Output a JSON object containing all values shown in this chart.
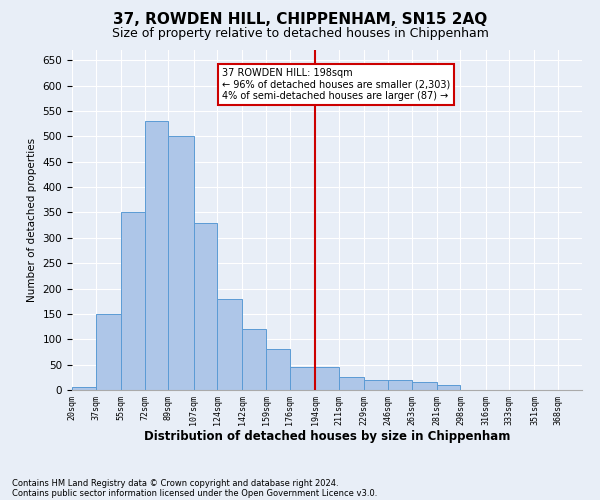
{
  "title": "37, ROWDEN HILL, CHIPPENHAM, SN15 2AQ",
  "subtitle": "Size of property relative to detached houses in Chippenham",
  "xlabel": "Distribution of detached houses by size in Chippenham",
  "ylabel": "Number of detached properties",
  "footnote1": "Contains HM Land Registry data © Crown copyright and database right 2024.",
  "footnote2": "Contains public sector information licensed under the Open Government Licence v3.0.",
  "annotation_title": "37 ROWDEN HILL: 198sqm",
  "annotation_line1": "← 96% of detached houses are smaller (2,303)",
  "annotation_line2": "4% of semi-detached houses are larger (87) →",
  "property_size": 198,
  "bin_labels": [
    "20sqm",
    "37sqm",
    "55sqm",
    "72sqm",
    "89sqm",
    "107sqm",
    "124sqm",
    "142sqm",
    "159sqm",
    "176sqm",
    "194sqm",
    "211sqm",
    "229sqm",
    "246sqm",
    "263sqm",
    "281sqm",
    "298sqm",
    "316sqm",
    "333sqm",
    "351sqm",
    "368sqm"
  ],
  "bin_edges": [
    20,
    37,
    55,
    72,
    89,
    107,
    124,
    142,
    159,
    176,
    194,
    211,
    229,
    246,
    263,
    281,
    298,
    316,
    333,
    351,
    368,
    385
  ],
  "bar_heights": [
    5,
    150,
    350,
    530,
    500,
    330,
    180,
    120,
    80,
    45,
    45,
    25,
    20,
    20,
    15,
    10,
    0,
    0,
    0,
    0,
    0
  ],
  "bar_color": "#aec6e8",
  "bar_edge_color": "#5b9bd5",
  "vline_color": "#cc0000",
  "vline_x": 194,
  "ylim": [
    0,
    670
  ],
  "yticks": [
    0,
    50,
    100,
    150,
    200,
    250,
    300,
    350,
    400,
    450,
    500,
    550,
    600,
    650
  ],
  "background_color": "#e8eef7",
  "grid_color": "#ffffff",
  "annotation_box_color": "#ffffff",
  "annotation_box_edge": "#cc0000",
  "title_fontsize": 11,
  "subtitle_fontsize": 9
}
